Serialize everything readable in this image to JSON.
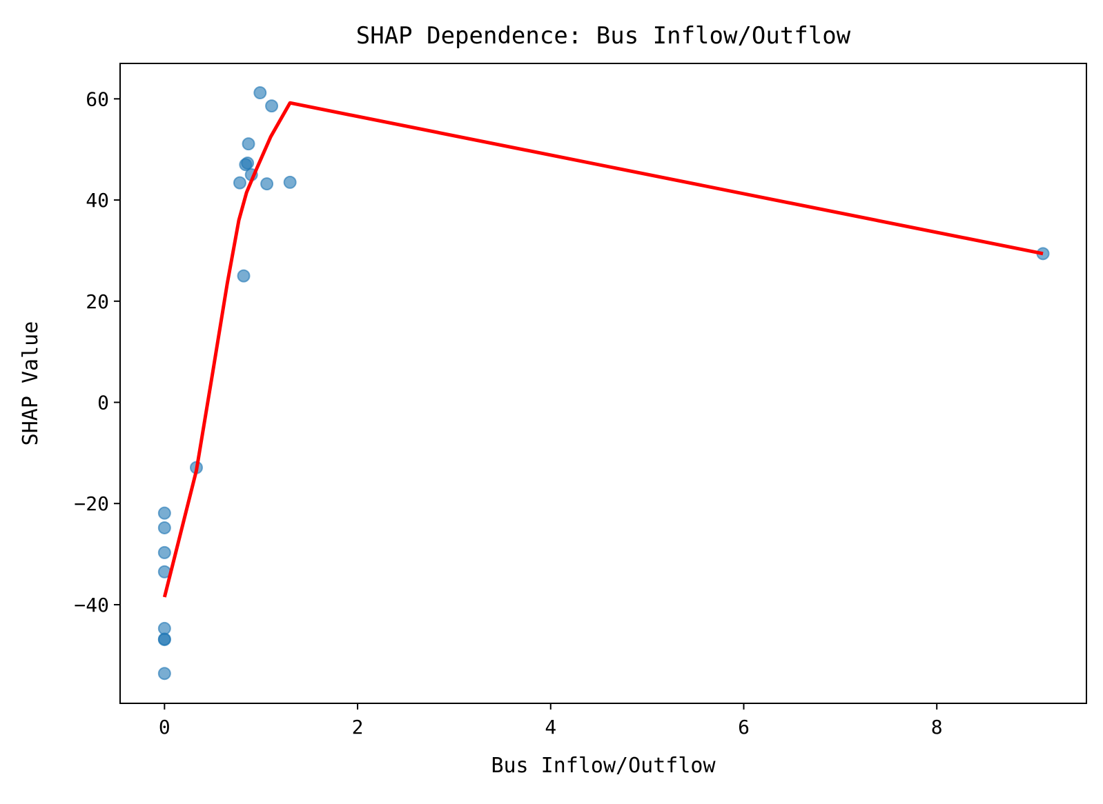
{
  "chart_data": {
    "type": "scatter",
    "title": "SHAP Dependence: Bus Inflow/Outflow",
    "xlabel": "Bus Inflow/Outflow",
    "ylabel": "SHAP Value",
    "xlim": [
      -0.46,
      9.55
    ],
    "ylim": [
      -59.5,
      67
    ],
    "xticks": [
      0,
      2,
      4,
      6,
      8
    ],
    "yticks": [
      -40,
      -20,
      0,
      20,
      40,
      60
    ],
    "xtick_labels": [
      "0",
      "2",
      "4",
      "6",
      "8"
    ],
    "ytick_labels": [
      "−40",
      "−20",
      "0",
      "20",
      "40",
      "60"
    ],
    "grid": false,
    "colors": {
      "points": "#1f77b4",
      "trend": "#ff0000"
    },
    "series": [
      {
        "kind": "scatter",
        "points": [
          {
            "x": 0,
            "y": -21.9
          },
          {
            "x": 0,
            "y": -24.8
          },
          {
            "x": 0,
            "y": -29.7
          },
          {
            "x": 0,
            "y": -33.5
          },
          {
            "x": 0,
            "y": -44.7
          },
          {
            "x": 0,
            "y": -46.8
          },
          {
            "x": 0,
            "y": -46.9
          },
          {
            "x": 0,
            "y": -53.6
          },
          {
            "x": 0.33,
            "y": -12.9
          },
          {
            "x": 0.78,
            "y": 43.4
          },
          {
            "x": 0.82,
            "y": 25.0
          },
          {
            "x": 0.84,
            "y": 47.0
          },
          {
            "x": 0.86,
            "y": 47.3
          },
          {
            "x": 0.87,
            "y": 51.1
          },
          {
            "x": 0.9,
            "y": 45.0
          },
          {
            "x": 0.99,
            "y": 61.2
          },
          {
            "x": 1.06,
            "y": 43.2
          },
          {
            "x": 1.11,
            "y": 58.6
          },
          {
            "x": 1.3,
            "y": 43.5
          },
          {
            "x": 9.1,
            "y": 29.4
          }
        ]
      },
      {
        "kind": "line",
        "points": [
          {
            "x": 0,
            "y": -38.5
          },
          {
            "x": 0.33,
            "y": -13.5
          },
          {
            "x": 0.5,
            "y": 6.0
          },
          {
            "x": 0.65,
            "y": 23.5
          },
          {
            "x": 0.77,
            "y": 36.0
          },
          {
            "x": 0.85,
            "y": 41.5
          },
          {
            "x": 0.95,
            "y": 46.0
          },
          {
            "x": 1.1,
            "y": 52.5
          },
          {
            "x": 1.3,
            "y": 59.2
          },
          {
            "x": 9.1,
            "y": 29.4
          }
        ]
      }
    ]
  }
}
